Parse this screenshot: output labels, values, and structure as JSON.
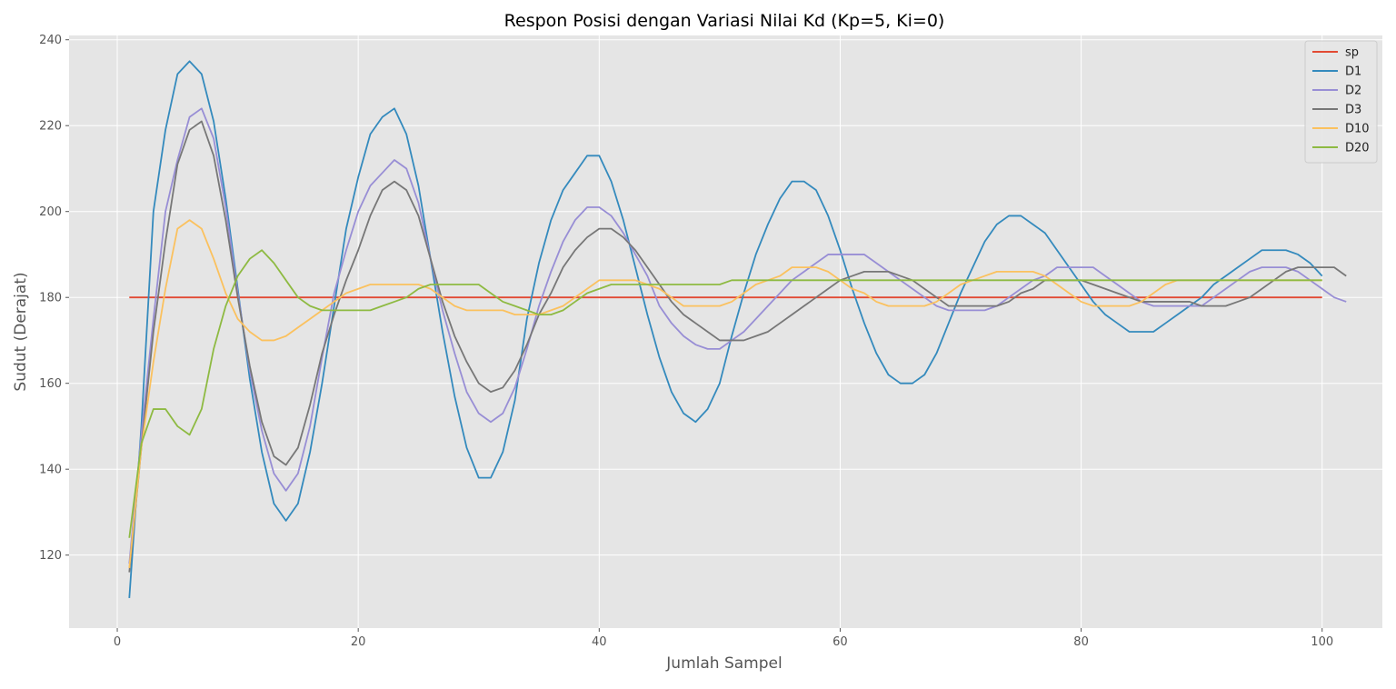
{
  "chart_data": {
    "type": "line",
    "title": "Respon Posisi dengan Variasi Nilai Kd (Kp=5, Ki=0)",
    "xlabel": "Jumlah Sampel",
    "ylabel": "Sudut (Derajat)",
    "xlim": [
      -4,
      105
    ],
    "ylim": [
      103,
      241
    ],
    "xticks": [
      0,
      20,
      40,
      60,
      80,
      100
    ],
    "yticks": [
      120,
      140,
      160,
      180,
      200,
      220,
      240
    ],
    "grid": true,
    "legend_position": "top-right",
    "background": "#e5e5e5",
    "series": [
      {
        "name": "sp",
        "color": "#e24a33",
        "values": [
          180,
          180,
          180,
          180,
          180,
          180,
          180,
          180,
          180,
          180,
          180,
          180,
          180,
          180,
          180,
          180,
          180,
          180,
          180,
          180,
          180,
          180,
          180,
          180,
          180,
          180,
          180,
          180,
          180,
          180,
          180,
          180,
          180,
          180,
          180,
          180,
          180,
          180,
          180,
          180,
          180,
          180,
          180,
          180,
          180,
          180,
          180,
          180,
          180,
          180,
          180,
          180,
          180,
          180,
          180,
          180,
          180,
          180,
          180,
          180,
          180,
          180,
          180,
          180,
          180,
          180,
          180,
          180,
          180,
          180,
          180,
          180,
          180,
          180,
          180,
          180,
          180,
          180,
          180,
          180,
          180,
          180,
          180,
          180,
          180,
          180,
          180,
          180,
          180,
          180,
          180,
          180,
          180,
          180,
          180,
          180,
          180,
          180,
          180,
          180
        ]
      },
      {
        "name": "D1",
        "color": "#348abd",
        "values": [
          110,
          150,
          200,
          219,
          232,
          235,
          232,
          221,
          203,
          182,
          161,
          144,
          132,
          128,
          132,
          144,
          160,
          178,
          196,
          208,
          218,
          222,
          224,
          218,
          206,
          189,
          172,
          157,
          145,
          138,
          138,
          144,
          156,
          175,
          188,
          198,
          205,
          209,
          213,
          213,
          207,
          198,
          187,
          176,
          166,
          158,
          153,
          151,
          154,
          160,
          171,
          181,
          190,
          197,
          203,
          207,
          207,
          205,
          199,
          191,
          182,
          174,
          167,
          162,
          160,
          160,
          162,
          167,
          174,
          181,
          187,
          193,
          197,
          199,
          199,
          197,
          195,
          191,
          187,
          183,
          179,
          176,
          174,
          172,
          172,
          172,
          174,
          176,
          178,
          180,
          183,
          185,
          187,
          189,
          191,
          191,
          191,
          190,
          188,
          185
        ]
      },
      {
        "name": "D2",
        "color": "#988ed5",
        "values": [
          118,
          148,
          175,
          200,
          212,
          222,
          224,
          217,
          201,
          181,
          163,
          149,
          139,
          135,
          139,
          150,
          166,
          181,
          191,
          200,
          206,
          209,
          212,
          210,
          202,
          189,
          177,
          167,
          158,
          153,
          151,
          153,
          159,
          168,
          178,
          186,
          193,
          198,
          201,
          201,
          199,
          195,
          190,
          185,
          178,
          174,
          171,
          169,
          168,
          168,
          170,
          172,
          175,
          178,
          181,
          184,
          186,
          188,
          190,
          190,
          190,
          190,
          188,
          186,
          184,
          182,
          180,
          178,
          177,
          177,
          177,
          177,
          178,
          180,
          182,
          184,
          185,
          187,
          187,
          187,
          187,
          185,
          183,
          181,
          179,
          178,
          178,
          178,
          178,
          178,
          180,
          182,
          184,
          186,
          187,
          187,
          187,
          186,
          184,
          182,
          180,
          179
        ]
      },
      {
        "name": "D3",
        "color": "#777777",
        "values": [
          116,
          145,
          172,
          193,
          211,
          219,
          221,
          213,
          198,
          180,
          164,
          151,
          143,
          141,
          145,
          155,
          167,
          176,
          184,
          191,
          199,
          205,
          207,
          205,
          199,
          189,
          179,
          171,
          165,
          160,
          158,
          159,
          163,
          169,
          176,
          181,
          187,
          191,
          194,
          196,
          196,
          194,
          191,
          187,
          183,
          179,
          176,
          174,
          172,
          170,
          170,
          170,
          171,
          172,
          174,
          176,
          178,
          180,
          182,
          184,
          185,
          186,
          186,
          186,
          185,
          184,
          182,
          180,
          178,
          178,
          178,
          178,
          178,
          179,
          181,
          182,
          184,
          184,
          184,
          184,
          183,
          182,
          181,
          180,
          179,
          179,
          179,
          179,
          179,
          178,
          178,
          178,
          179,
          180,
          182,
          184,
          186,
          187,
          187,
          187,
          187,
          185
        ]
      },
      {
        "name": "D10",
        "color": "#fbc15e",
        "values": [
          117,
          145,
          165,
          182,
          196,
          198,
          196,
          189,
          181,
          175,
          172,
          170,
          170,
          171,
          173,
          175,
          177,
          179,
          181,
          182,
          183,
          183,
          183,
          183,
          183,
          182,
          180,
          178,
          177,
          177,
          177,
          177,
          176,
          176,
          176,
          177,
          178,
          180,
          182,
          184,
          184,
          184,
          184,
          183,
          182,
          180,
          178,
          178,
          178,
          178,
          179,
          181,
          183,
          184,
          185,
          187,
          187,
          187,
          186,
          184,
          182,
          181,
          179,
          178,
          178,
          178,
          178,
          179,
          181,
          183,
          184,
          185,
          186,
          186,
          186,
          186,
          185,
          183,
          181,
          179,
          178,
          178,
          178,
          178,
          179,
          181,
          183,
          184,
          184,
          184,
          184,
          184,
          184,
          184,
          184,
          184,
          184,
          184,
          184,
          184
        ]
      },
      {
        "name": "D20",
        "color": "#8eba42",
        "values": [
          124,
          146,
          154,
          154,
          150,
          148,
          154,
          168,
          178,
          185,
          189,
          191,
          188,
          184,
          180,
          178,
          177,
          177,
          177,
          177,
          177,
          178,
          179,
          180,
          182,
          183,
          183,
          183,
          183,
          183,
          181,
          179,
          178,
          177,
          176,
          176,
          177,
          179,
          181,
          182,
          183,
          183,
          183,
          183,
          183,
          183,
          183,
          183,
          183,
          183,
          184,
          184,
          184,
          184,
          184,
          184,
          184,
          184,
          184,
          184,
          184,
          184,
          184,
          184,
          184,
          184,
          184,
          184,
          184,
          184,
          184,
          184,
          184,
          184,
          184,
          184,
          184,
          184,
          184,
          184,
          184,
          184,
          184,
          184,
          184,
          184,
          184,
          184,
          184,
          184,
          184,
          184,
          184,
          184,
          184,
          184,
          184,
          184,
          184,
          184
        ]
      }
    ]
  }
}
